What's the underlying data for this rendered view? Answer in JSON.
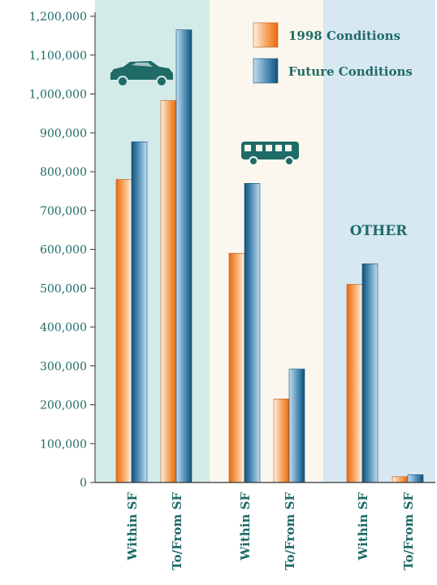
{
  "chart_data": {
    "type": "bar",
    "title": "",
    "xlabel": "",
    "ylabel": "",
    "ylim": [
      0,
      1200000
    ],
    "yticks": [
      0,
      100000,
      200000,
      300000,
      400000,
      500000,
      600000,
      700000,
      800000,
      900000,
      1000000,
      1100000,
      1200000
    ],
    "ytick_labels": [
      "0",
      "100,000",
      "200,000",
      "300,000",
      "400,000",
      "500,000",
      "600,000",
      "700,000",
      "800,000",
      "900,000",
      "1,000,000",
      "1,100,000",
      "1,200,000"
    ],
    "groups": [
      {
        "mode": "auto",
        "icon": "car-icon",
        "label": "",
        "background": "#d3ebe8"
      },
      {
        "mode": "transit",
        "icon": "bus-icon",
        "label": "",
        "background": "#fbf7ee"
      },
      {
        "mode": "other",
        "icon": "",
        "label": "OTHER",
        "background": "#d8e8f2"
      }
    ],
    "categories": [
      "Within SF",
      "To/From SF",
      "Within SF",
      "To/From SF",
      "Within SF",
      "To/From SF"
    ],
    "series": [
      {
        "name": "1998 Conditions",
        "values": [
          780000,
          983000,
          590000,
          215000,
          510000,
          15000
        ]
      },
      {
        "name": "Future Conditions",
        "values": [
          877000,
          1165000,
          770000,
          292000,
          563000,
          20000
        ]
      }
    ],
    "legend_position": "top-right",
    "grid": false,
    "colors": {
      "series_1998": [
        "#fdf1e4",
        "#f5a25a",
        "#e96a14"
      ],
      "series_future": [
        "#c4ddef",
        "#5b97bf",
        "#0f5277"
      ],
      "text": "#1f6b67",
      "icon": "#1f6b67",
      "axis": "#333333"
    }
  }
}
